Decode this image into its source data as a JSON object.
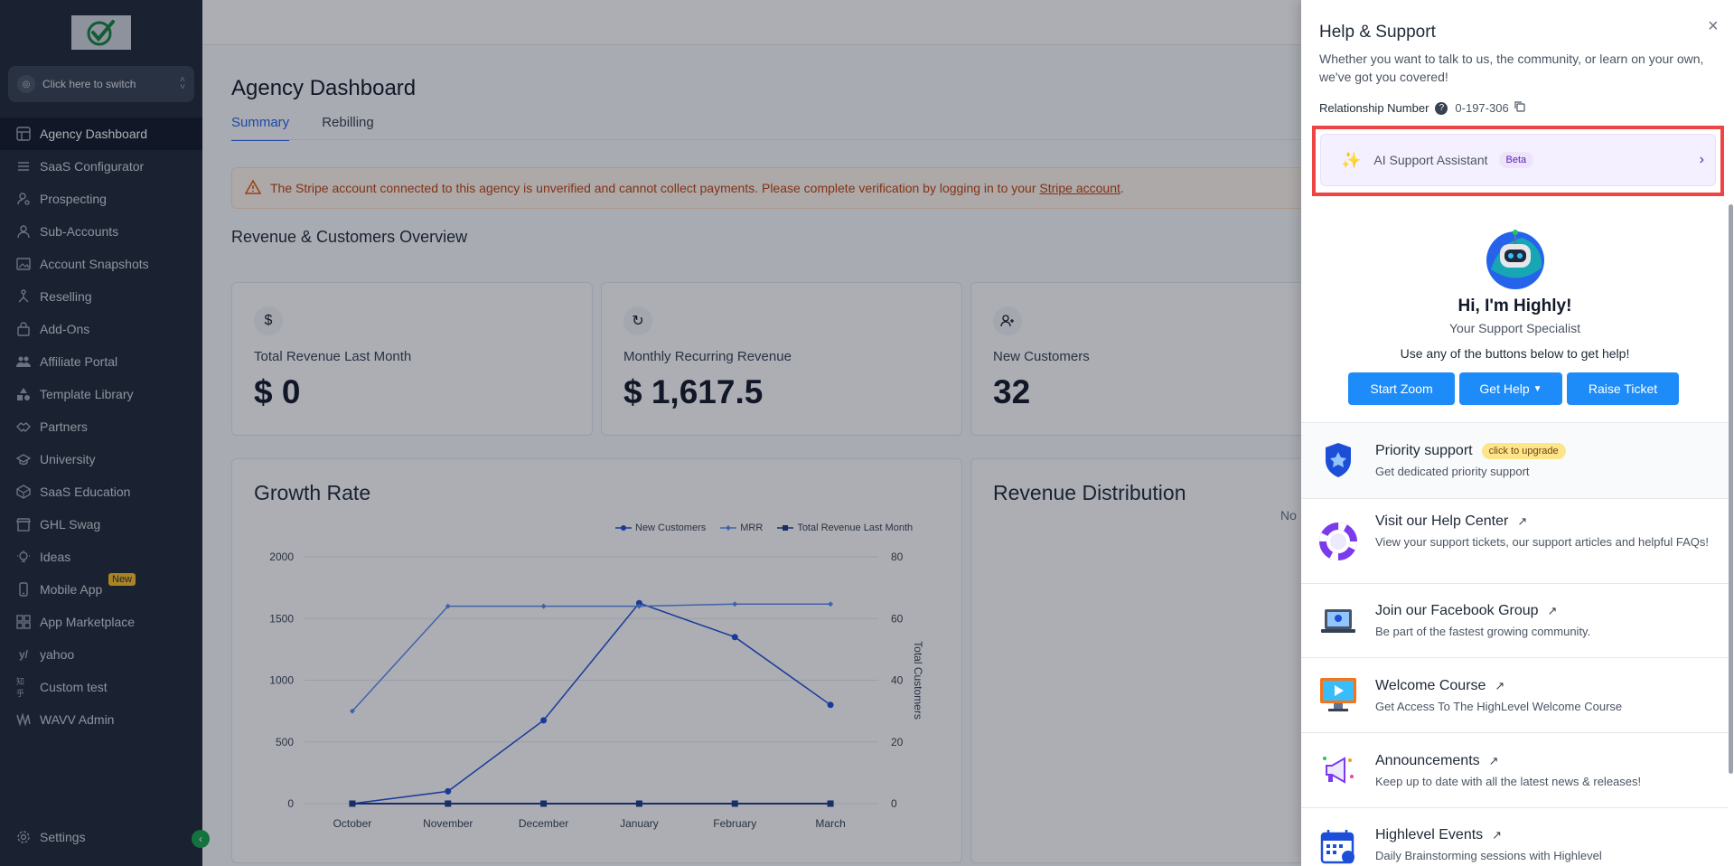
{
  "sidebar": {
    "switcher_label": "Click here to switch",
    "items": [
      {
        "label": "Agency Dashboard",
        "icon": "dashboard-icon"
      },
      {
        "label": "SaaS Configurator",
        "icon": "sliders-icon"
      },
      {
        "label": "Prospecting",
        "icon": "user-search-icon"
      },
      {
        "label": "Sub-Accounts",
        "icon": "user-icon"
      },
      {
        "label": "Account Snapshots",
        "icon": "image-icon"
      },
      {
        "label": "Reselling",
        "icon": "tree-icon"
      },
      {
        "label": "Add-Ons",
        "icon": "bag-icon"
      },
      {
        "label": "Affiliate Portal",
        "icon": "users-icon"
      },
      {
        "label": "Template Library",
        "icon": "shapes-icon"
      },
      {
        "label": "Partners",
        "icon": "handshake-icon"
      },
      {
        "label": "University",
        "icon": "graduation-icon"
      },
      {
        "label": "SaaS Education",
        "icon": "box-icon"
      },
      {
        "label": "GHL Swag",
        "icon": "store-icon"
      },
      {
        "label": "Ideas",
        "icon": "bulb-icon"
      },
      {
        "label": "Mobile App",
        "icon": "phone-icon",
        "badge": "New"
      },
      {
        "label": "App Marketplace",
        "icon": "grid-icon"
      },
      {
        "label": "yahoo",
        "icon": "yahoo-icon"
      },
      {
        "label": "Custom test",
        "icon": "zhihu-icon"
      },
      {
        "label": "WAVV Admin",
        "icon": "wavv-icon"
      }
    ],
    "settings_label": "Settings"
  },
  "main": {
    "title": "Agency Dashboard",
    "tabs": [
      {
        "label": "Summary"
      },
      {
        "label": "Rebilling"
      }
    ],
    "alert": {
      "text": "The Stripe account connected to this agency is unverified and cannot collect payments. Please complete verification by logging in to your ",
      "link": "Stripe account",
      "end": "."
    },
    "section_title": "Revenue & Customers Overview",
    "stats": [
      {
        "label": "Total Revenue Last Month",
        "value": "$ 0",
        "icon": "dollar-icon"
      },
      {
        "label": "Monthly Recurring Revenue",
        "value": "$ 1,617.5",
        "icon": "refresh-icon"
      },
      {
        "label": "New Customers",
        "value": "32",
        "icon": "user-plus-icon"
      }
    ],
    "growth_title": "Growth Rate",
    "distribution_title": "Revenue Distribution",
    "distribution_nodata": "No"
  },
  "chart_data": {
    "type": "line",
    "title": "Growth Rate",
    "categories": [
      "October",
      "November",
      "December",
      "January",
      "February",
      "March"
    ],
    "y_left_ticks": [
      "2000",
      "1500",
      "1000",
      "500",
      "0"
    ],
    "y_right_ticks": [
      "80",
      "60",
      "40",
      "20",
      "0"
    ],
    "ylim_left": [
      0,
      2000
    ],
    "ylim_right": [
      0,
      80
    ],
    "ylabel_right": "Total Customers",
    "legend_position": "top-right",
    "grid": true,
    "series": [
      {
        "name": "New Customers",
        "axis": "right",
        "values": [
          0,
          4,
          27,
          65,
          54,
          32
        ],
        "color": "#1d4ed8"
      },
      {
        "name": "MRR",
        "axis": "left",
        "values": [
          750,
          1600,
          1600,
          1600,
          1617.5,
          1617.5
        ],
        "color": "#5b8def"
      },
      {
        "name": "Total Revenue Last Month",
        "axis": "left",
        "values": [
          0,
          0,
          0,
          0,
          0,
          0
        ],
        "color": "#1e3a8a"
      }
    ]
  },
  "panel": {
    "title": "Help & Support",
    "close": "×",
    "subtitle": "Whether you want to talk to us, the community, or learn on your own, we've got you covered!",
    "relationship_label": "Relationship Number",
    "relationship_value": "0-197-306",
    "ai_label": "AI Support Assistant",
    "ai_badge": "Beta",
    "greeting": "Hi, I'm Highly!",
    "specialist": "Your Support Specialist",
    "use_any": "Use any of the buttons below to get help!",
    "buttons": {
      "zoom": "Start Zoom",
      "help": "Get Help",
      "ticket": "Raise Ticket"
    },
    "items": [
      {
        "title": "Priority support",
        "badge": "click to upgrade",
        "desc": "Get dedicated priority support"
      },
      {
        "title": "Visit our Help Center",
        "desc": "View your support tickets, our support articles and helpful FAQs!"
      },
      {
        "title": "Join our Facebook Group",
        "desc": "Be part of the fastest growing community."
      },
      {
        "title": "Welcome Course",
        "desc": "Get Access To The HighLevel Welcome Course"
      },
      {
        "title": "Announcements",
        "desc": "Keep up to date with all the latest news & releases!"
      },
      {
        "title": "Highlevel Events",
        "desc": "Daily Brainstorming sessions with Highlevel"
      }
    ]
  }
}
